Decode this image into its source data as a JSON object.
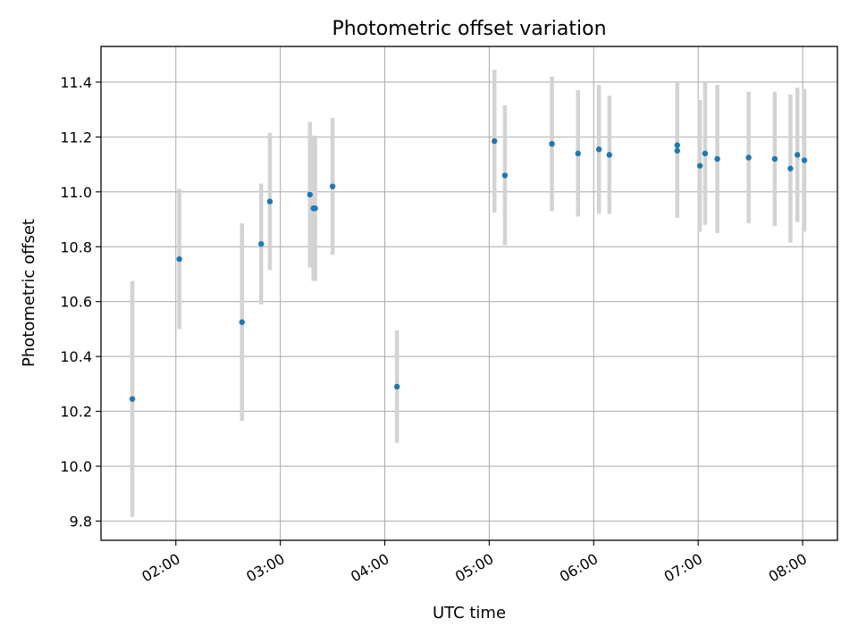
{
  "chart_data": {
    "type": "scatter",
    "title": "Photometric offset variation",
    "xlabel": "UTC time",
    "ylabel": "Photometric offset",
    "x_is_time": true,
    "xlim": [
      "01:17",
      "08:20"
    ],
    "ylim": [
      9.73,
      11.53
    ],
    "xticks": [
      "02:00",
      "03:00",
      "04:00",
      "05:00",
      "06:00",
      "07:00",
      "08:00"
    ],
    "yticks": [
      9.8,
      10.0,
      10.2,
      10.4,
      10.6,
      10.8,
      11.0,
      11.2,
      11.4
    ],
    "grid": true,
    "colors": {
      "points": "#1f77b4",
      "errorbars": "#d3d3d3",
      "grid": "#b0b0b0"
    },
    "points": [
      {
        "t": "01:35",
        "y": 10.245,
        "err": 0.43
      },
      {
        "t": "02:02",
        "y": 10.755,
        "err": 0.255
      },
      {
        "t": "02:38",
        "y": 10.525,
        "err": 0.36
      },
      {
        "t": "02:49",
        "y": 10.81,
        "err": 0.22
      },
      {
        "t": "02:54",
        "y": 10.965,
        "err": 0.25
      },
      {
        "t": "03:17",
        "y": 10.99,
        "err": 0.265
      },
      {
        "t": "03:19",
        "y": 10.94,
        "err": 0.265
      },
      {
        "t": "03:20",
        "y": 10.94,
        "err": 0.265
      },
      {
        "t": "03:30",
        "y": 11.02,
        "err": 0.25
      },
      {
        "t": "04:07",
        "y": 10.29,
        "err": 0.205
      },
      {
        "t": "05:03",
        "y": 11.185,
        "err": 0.26
      },
      {
        "t": "05:09",
        "y": 11.06,
        "err": 0.255
      },
      {
        "t": "05:36",
        "y": 11.175,
        "err": 0.245
      },
      {
        "t": "05:51",
        "y": 11.14,
        "err": 0.23
      },
      {
        "t": "06:03",
        "y": 11.155,
        "err": 0.235
      },
      {
        "t": "06:09",
        "y": 11.135,
        "err": 0.215
      },
      {
        "t": "06:48",
        "y": 11.15,
        "err": 0.245
      },
      {
        "t": "06:48",
        "y": 11.17,
        "err": 0.23
      },
      {
        "t": "07:01",
        "y": 11.095,
        "err": 0.24
      },
      {
        "t": "07:04",
        "y": 11.14,
        "err": 0.26
      },
      {
        "t": "07:11",
        "y": 11.12,
        "err": 0.27
      },
      {
        "t": "07:29",
        "y": 11.125,
        "err": 0.24
      },
      {
        "t": "07:44",
        "y": 11.12,
        "err": 0.245
      },
      {
        "t": "07:53",
        "y": 11.085,
        "err": 0.27
      },
      {
        "t": "07:57",
        "y": 11.135,
        "err": 0.245
      },
      {
        "t": "08:01",
        "y": 11.115,
        "err": 0.26
      }
    ]
  }
}
